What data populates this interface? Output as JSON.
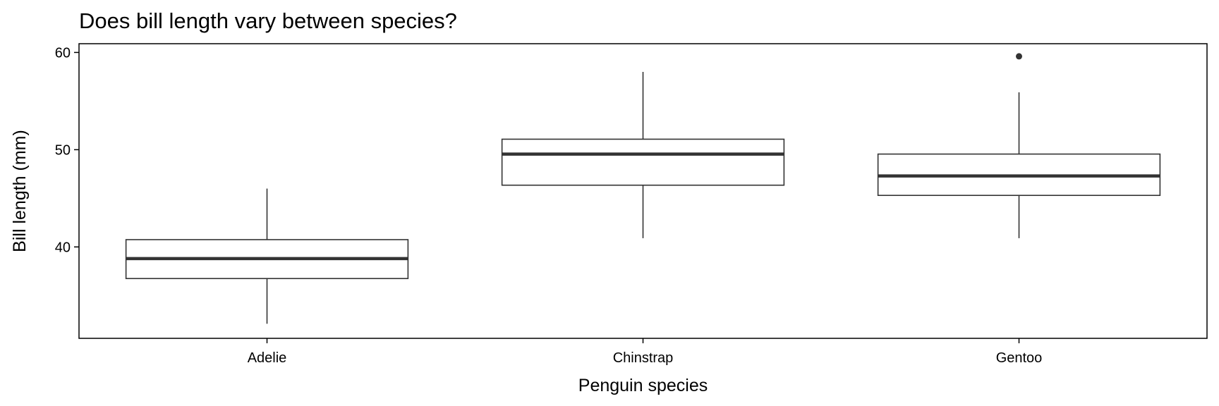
{
  "chart_data": {
    "type": "boxplot",
    "title": "Does bill length vary between species?",
    "xlabel": "Penguin species",
    "ylabel": "Bill length (mm)",
    "categories": [
      "Adelie",
      "Chinstrap",
      "Gentoo"
    ],
    "yticks": [
      40,
      50,
      60
    ],
    "ylim": [
      30.6,
      60.9
    ],
    "boxes": [
      {
        "category": "Adelie",
        "min": 32.1,
        "q1": 36.75,
        "median": 38.8,
        "q3": 40.75,
        "max": 46.0,
        "outliers": []
      },
      {
        "category": "Chinstrap",
        "min": 40.9,
        "q1": 46.35,
        "median": 49.55,
        "q3": 51.08,
        "max": 58.0,
        "outliers": []
      },
      {
        "category": "Gentoo",
        "min": 40.9,
        "q1": 45.3,
        "median": 47.3,
        "q3": 49.55,
        "max": 55.9,
        "outliers": [
          59.6
        ]
      }
    ],
    "colors": {
      "box_fill": "#ffffff",
      "box_stroke": "#333333",
      "median": "#333333",
      "frame": "#000000"
    },
    "grid": false,
    "legend": "none"
  }
}
